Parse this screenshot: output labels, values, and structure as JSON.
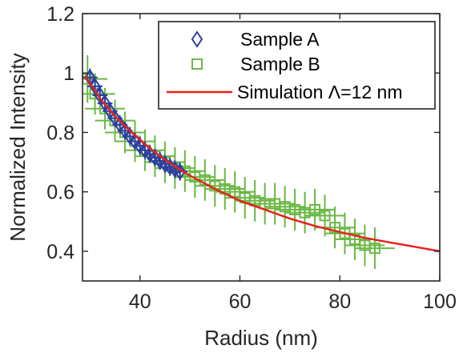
{
  "chart_data": {
    "type": "scatter",
    "xlabel": "Radius (nm)",
    "ylabel": "Normalized Intensity",
    "xlim": [
      28.5,
      100
    ],
    "ylim": [
      0.3,
      1.2
    ],
    "x_ticks": [
      40,
      60,
      80,
      100
    ],
    "y_ticks": [
      0.4,
      0.6,
      0.8,
      1.0,
      1.2
    ],
    "x_tick_labels": [
      "40",
      "60",
      "80",
      "100"
    ],
    "y_tick_labels": [
      "0.4",
      "0.6",
      "0.8",
      "1",
      "1.2"
    ],
    "grid": false,
    "legend_position": "top-right",
    "series": [
      {
        "name": "Sample A",
        "kind": "marker",
        "marker": "diamond",
        "color": "#2a3ea0",
        "x": [
          30.0,
          31.0,
          32.0,
          33.0,
          34.0,
          35.0,
          36.0,
          37.0,
          38.0,
          39.0,
          40.0,
          41.0,
          42.0,
          43.0,
          44.0,
          45.0,
          46.0,
          47.0,
          48.0
        ],
        "y": [
          0.985,
          0.955,
          0.925,
          0.898,
          0.872,
          0.848,
          0.826,
          0.806,
          0.787,
          0.77,
          0.755,
          0.74,
          0.727,
          0.715,
          0.704,
          0.694,
          0.684,
          0.676,
          0.668
        ],
        "xerr": [
          1.5,
          1.5,
          1.5,
          1.5,
          1.5,
          1.5,
          1.5,
          1.5,
          1.5,
          1.5,
          1.5,
          1.5,
          1.5,
          1.5,
          1.5,
          1.5,
          1.5,
          1.5,
          1.5
        ],
        "yerr": [
          0.03,
          0.03,
          0.03,
          0.03,
          0.03,
          0.03,
          0.03,
          0.03,
          0.03,
          0.03,
          0.03,
          0.03,
          0.03,
          0.03,
          0.03,
          0.03,
          0.03,
          0.03,
          0.03
        ]
      },
      {
        "name": "Sample B",
        "kind": "marker",
        "marker": "square",
        "color": "#6ab843",
        "x": [
          29.5,
          31,
          33,
          35,
          37,
          39,
          41,
          43,
          45,
          47,
          49,
          51,
          53,
          55,
          57,
          59,
          61,
          63,
          65,
          67,
          69,
          71,
          73,
          75,
          77,
          79,
          81,
          83,
          85,
          87
        ],
        "y": [
          0.98,
          0.93,
          0.88,
          0.84,
          0.8,
          0.77,
          0.74,
          0.72,
          0.7,
          0.68,
          0.67,
          0.65,
          0.64,
          0.62,
          0.61,
          0.6,
          0.58,
          0.57,
          0.56,
          0.56,
          0.55,
          0.54,
          0.53,
          0.54,
          0.52,
          0.48,
          0.46,
          0.44,
          0.42,
          0.41
        ],
        "xerr": [
          4,
          4,
          4,
          4,
          4,
          4,
          4,
          4,
          4,
          4,
          4,
          4,
          4,
          4,
          4,
          4,
          4,
          4,
          4,
          4,
          4,
          4,
          4,
          4,
          4,
          4,
          4,
          4,
          4,
          4
        ],
        "yerr": [
          0.08,
          0.07,
          0.07,
          0.07,
          0.07,
          0.07,
          0.07,
          0.07,
          0.07,
          0.07,
          0.07,
          0.07,
          0.07,
          0.07,
          0.07,
          0.07,
          0.07,
          0.07,
          0.07,
          0.07,
          0.07,
          0.07,
          0.07,
          0.07,
          0.07,
          0.07,
          0.07,
          0.07,
          0.07,
          0.07
        ]
      },
      {
        "name": "Simulation Λ=12 nm",
        "kind": "line",
        "color": "#e8211e",
        "x": [
          29,
          32,
          35,
          38,
          41,
          44,
          47,
          50,
          55,
          60,
          65,
          70,
          75,
          80,
          85,
          90,
          95,
          100
        ],
        "y": [
          0.99,
          0.915,
          0.855,
          0.805,
          0.76,
          0.72,
          0.685,
          0.655,
          0.61,
          0.57,
          0.54,
          0.51,
          0.485,
          0.465,
          0.445,
          0.43,
          0.415,
          0.4
        ]
      }
    ]
  }
}
